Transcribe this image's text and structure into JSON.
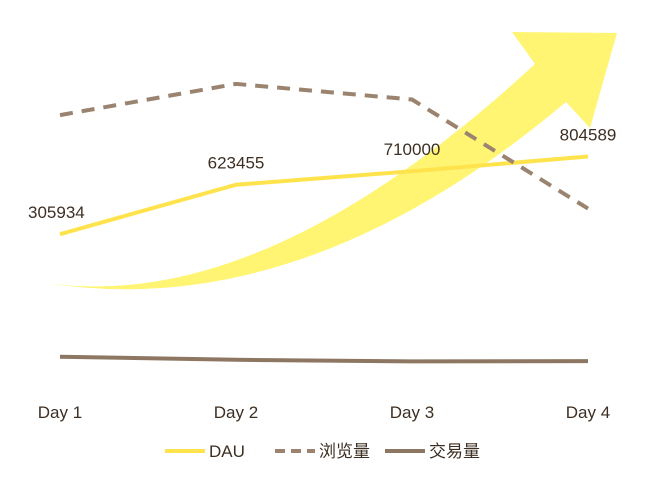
{
  "chart_data": {
    "type": "line",
    "categories": [
      "Day 1",
      "Day 2",
      "Day 3",
      "Day 4"
    ],
    "series": [
      {
        "name": "DAU",
        "values": [
          305934,
          623455,
          710000,
          804589
        ],
        "color": "#ffe34d",
        "style": "solid",
        "data_labels": [
          "305934",
          "623455",
          "710000",
          "804589"
        ]
      },
      {
        "name": "浏览量",
        "values": [
          1070000,
          1270000,
          1170000,
          470000
        ],
        "color": "#9a8470",
        "style": "dashed"
      },
      {
        "name": "交易量",
        "values": [
          -480000,
          -500000,
          -510000,
          -508000
        ],
        "color": "#8d7762",
        "style": "solid"
      }
    ],
    "ylim": [
      -950000,
      1680000
    ],
    "grid": false,
    "legend": "bottom-center",
    "decoration": {
      "arrow": "yellow-upward-curved-arrow",
      "color": "#fff35a"
    }
  }
}
